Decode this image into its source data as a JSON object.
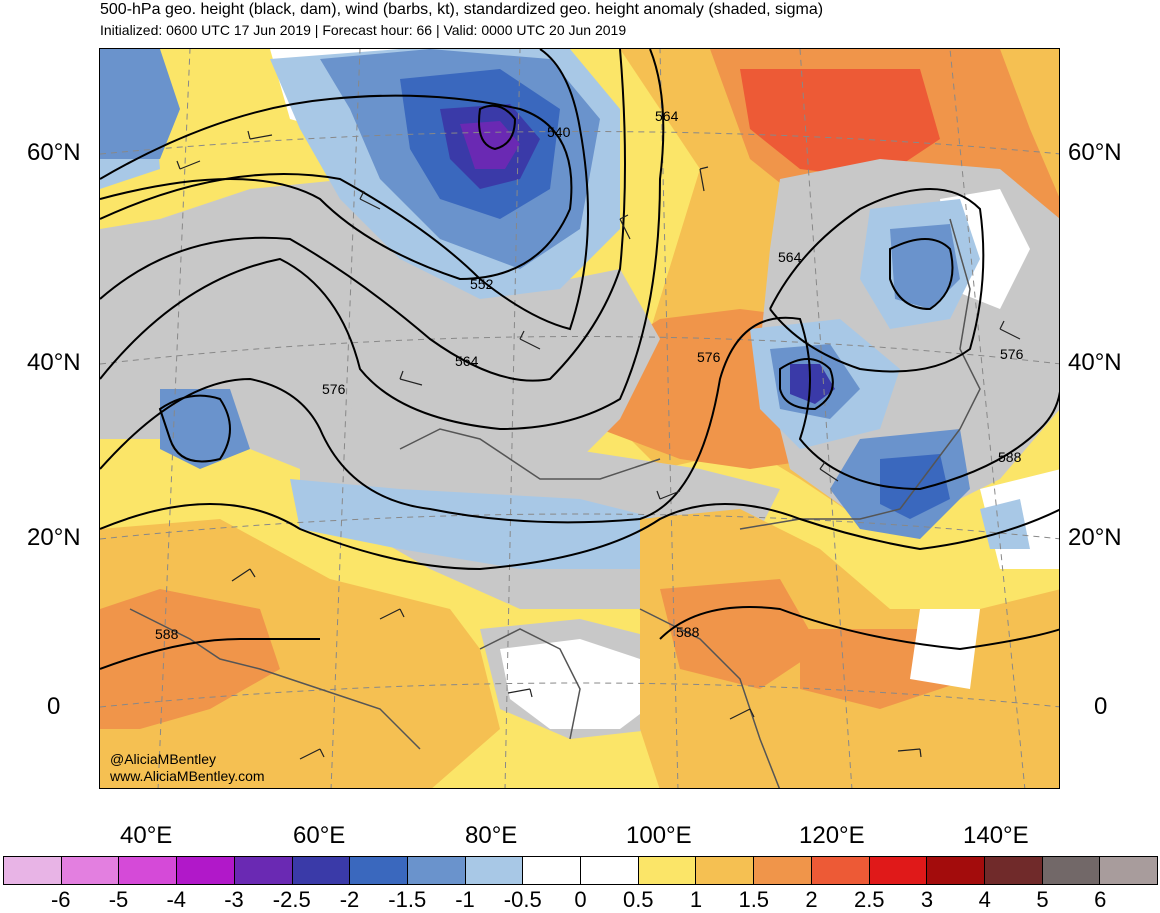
{
  "header": {
    "title": "500-hPa geo. height (black, dam), wind (barbs, kt), standardized geo. height anomaly (shaded, sigma)",
    "subtitle": "Initialized: 0600 UTC 17 Jun 2019 | Forecast hour: 66 | Valid: 0000 UTC 20 Jun 2019"
  },
  "map": {
    "lat_labels": [
      "60°N",
      "40°N",
      "20°N",
      "0"
    ],
    "lon_labels": [
      "40°E",
      "60°E",
      "80°E",
      "100°E",
      "120°E",
      "140°E"
    ],
    "contour_labels": [
      "540",
      "552",
      "564",
      "564",
      "564",
      "576",
      "576",
      "576",
      "588",
      "588",
      "588"
    ],
    "credit": {
      "handle": "@AliciaMBentley",
      "website": "www.AliciaMBentley.com"
    }
  },
  "colorbar": {
    "labels": [
      "-6",
      "-5",
      "-4",
      "-3",
      "-2.5",
      "-2",
      "-1.5",
      "-1",
      "-0.5",
      "0",
      "0.5",
      "1",
      "1.5",
      "2",
      "2.5",
      "3",
      "4",
      "5",
      "6"
    ],
    "colors": [
      "#e8b4e6",
      "#e37fe0",
      "#d54ad8",
      "#b118c9",
      "#6a29b3",
      "#3a3aa8",
      "#3a68be",
      "#6a93cc",
      "#a8c8e6",
      "#ffffff",
      "#ffffff",
      "#fbe568",
      "#f5c052",
      "#f0954a",
      "#ed5a36",
      "#e01919",
      "#a30c0c",
      "#702a2a",
      "#726868",
      "#a89c9c"
    ]
  },
  "colors": {
    "contour": "#000000",
    "coastline": "#555555",
    "neutral_anomaly": "#c8c8c8"
  }
}
